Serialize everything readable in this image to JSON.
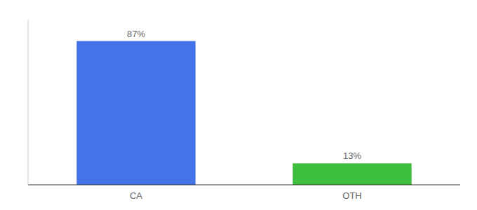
{
  "chart_data": {
    "type": "bar",
    "categories": [
      "CA",
      "OTH"
    ],
    "values": [
      87,
      13
    ],
    "value_labels": [
      "87%",
      "13%"
    ],
    "colors": [
      "#4472e8",
      "#3dbe3d"
    ],
    "ylim": [
      0,
      100
    ],
    "data_labels": true,
    "tick_labels": "x",
    "grid": false
  }
}
